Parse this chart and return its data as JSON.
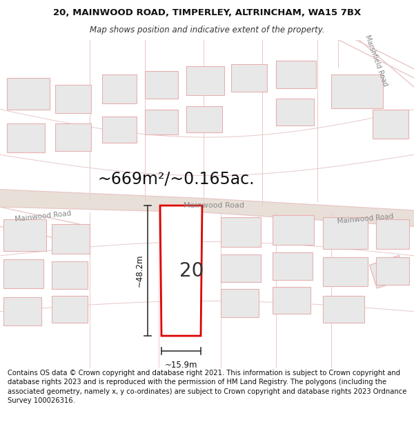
{
  "title_line1": "20, MAINWOOD ROAD, TIMPERLEY, ALTRINCHAM, WA15 7BX",
  "title_line2": "Map shows position and indicative extent of the property.",
  "area_text": "~669m²/~0.165ac.",
  "house_number": "20",
  "dim_width": "~15.9m",
  "dim_height": "~48.2m",
  "road_label_main_center": "Mainwood Road",
  "road_label_left": "Mainwood Road",
  "road_label_right": "Mainwood Road",
  "road_label_marshfield": "Marshfield Road",
  "footer_text": "Contains OS data © Crown copyright and database right 2021. This information is subject to Crown copyright and database rights 2023 and is reproduced with the permission of HM Land Registry. The polygons (including the associated geometry, namely x, y co-ordinates) are subject to Crown copyright and database rights 2023 Ordnance Survey 100026316.",
  "bg_color": "#f0ebe4",
  "map_bg": "#f0ebe4",
  "plot_fill": "#ffffff",
  "plot_edge": "#dd0000",
  "road_color": "#e8c8c8",
  "road_fill": "#ede8e2",
  "block_fill": "#e8e8e8",
  "block_edge": "#e8b0b0",
  "dim_line_color": "#333333",
  "text_color": "#222222",
  "road_text_color": "#888888",
  "title_fontsize": 9.5,
  "subtitle_fontsize": 8.5,
  "footer_fontsize": 7.2,
  "area_fontsize": 17,
  "house_fontsize": 20,
  "dim_fontsize": 8.5
}
